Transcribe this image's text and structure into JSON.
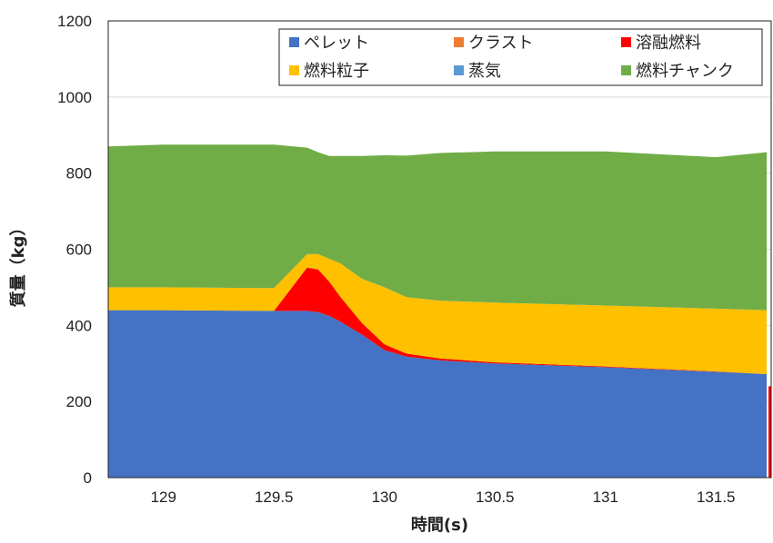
{
  "chart_data": {
    "type": "area",
    "stacked": true,
    "title": "",
    "xlabel": "時間(s)",
    "ylabel": "質量（kg）",
    "xlim": [
      128.75,
      131.75
    ],
    "ylim": [
      0,
      1200
    ],
    "xticks": [
      129,
      129.5,
      130,
      130.5,
      131,
      131.5
    ],
    "xtick_labels": [
      "129",
      "129.5",
      "130",
      "130.5",
      "131",
      "131.5"
    ],
    "yticks": [
      0,
      200,
      400,
      600,
      800,
      1000,
      1200
    ],
    "ytick_labels": [
      "0",
      "200",
      "400",
      "600",
      "800",
      "1000",
      "1200"
    ],
    "grid": "horizontal",
    "legend_position": "top-right",
    "x": [
      128.75,
      129.0,
      129.5,
      129.65,
      129.7,
      129.75,
      129.8,
      129.9,
      130.0,
      130.1,
      130.25,
      130.5,
      131.0,
      131.5,
      131.73
    ],
    "series": [
      {
        "name": "ペレット",
        "color": "#4472C4",
        "values": [
          440,
          440,
          438,
          438,
          435,
          425,
          410,
          375,
          335,
          318,
          308,
          300,
          290,
          278,
          272
        ]
      },
      {
        "name": "クラスト",
        "color": "#ED7D31",
        "values": [
          0,
          0,
          0,
          0,
          0,
          0,
          0,
          0,
          0,
          0,
          0,
          0,
          0,
          0,
          0
        ]
      },
      {
        "name": "溶融燃料",
        "color": "#FF0000",
        "values": [
          0,
          0,
          0,
          114,
          112,
          90,
          65,
          30,
          15,
          8,
          5,
          3,
          2,
          1,
          0
        ]
      },
      {
        "name": "燃料粒子",
        "color": "#FFC000",
        "values": [
          60,
          60,
          60,
          35,
          40,
          60,
          88,
          117,
          150,
          148,
          152,
          157,
          160,
          165,
          168
        ]
      },
      {
        "name": "蒸気",
        "color": "#5B9BD5",
        "values": [
          0,
          0,
          0,
          0,
          0,
          0,
          0,
          0,
          0,
          0,
          0,
          0,
          0,
          0,
          0
        ]
      },
      {
        "name": "燃料チャンク",
        "color": "#70AD47",
        "values": [
          370,
          375,
          377,
          280,
          268,
          270,
          282,
          323,
          347,
          372,
          388,
          397,
          405,
          398,
          415
        ]
      }
    ]
  }
}
